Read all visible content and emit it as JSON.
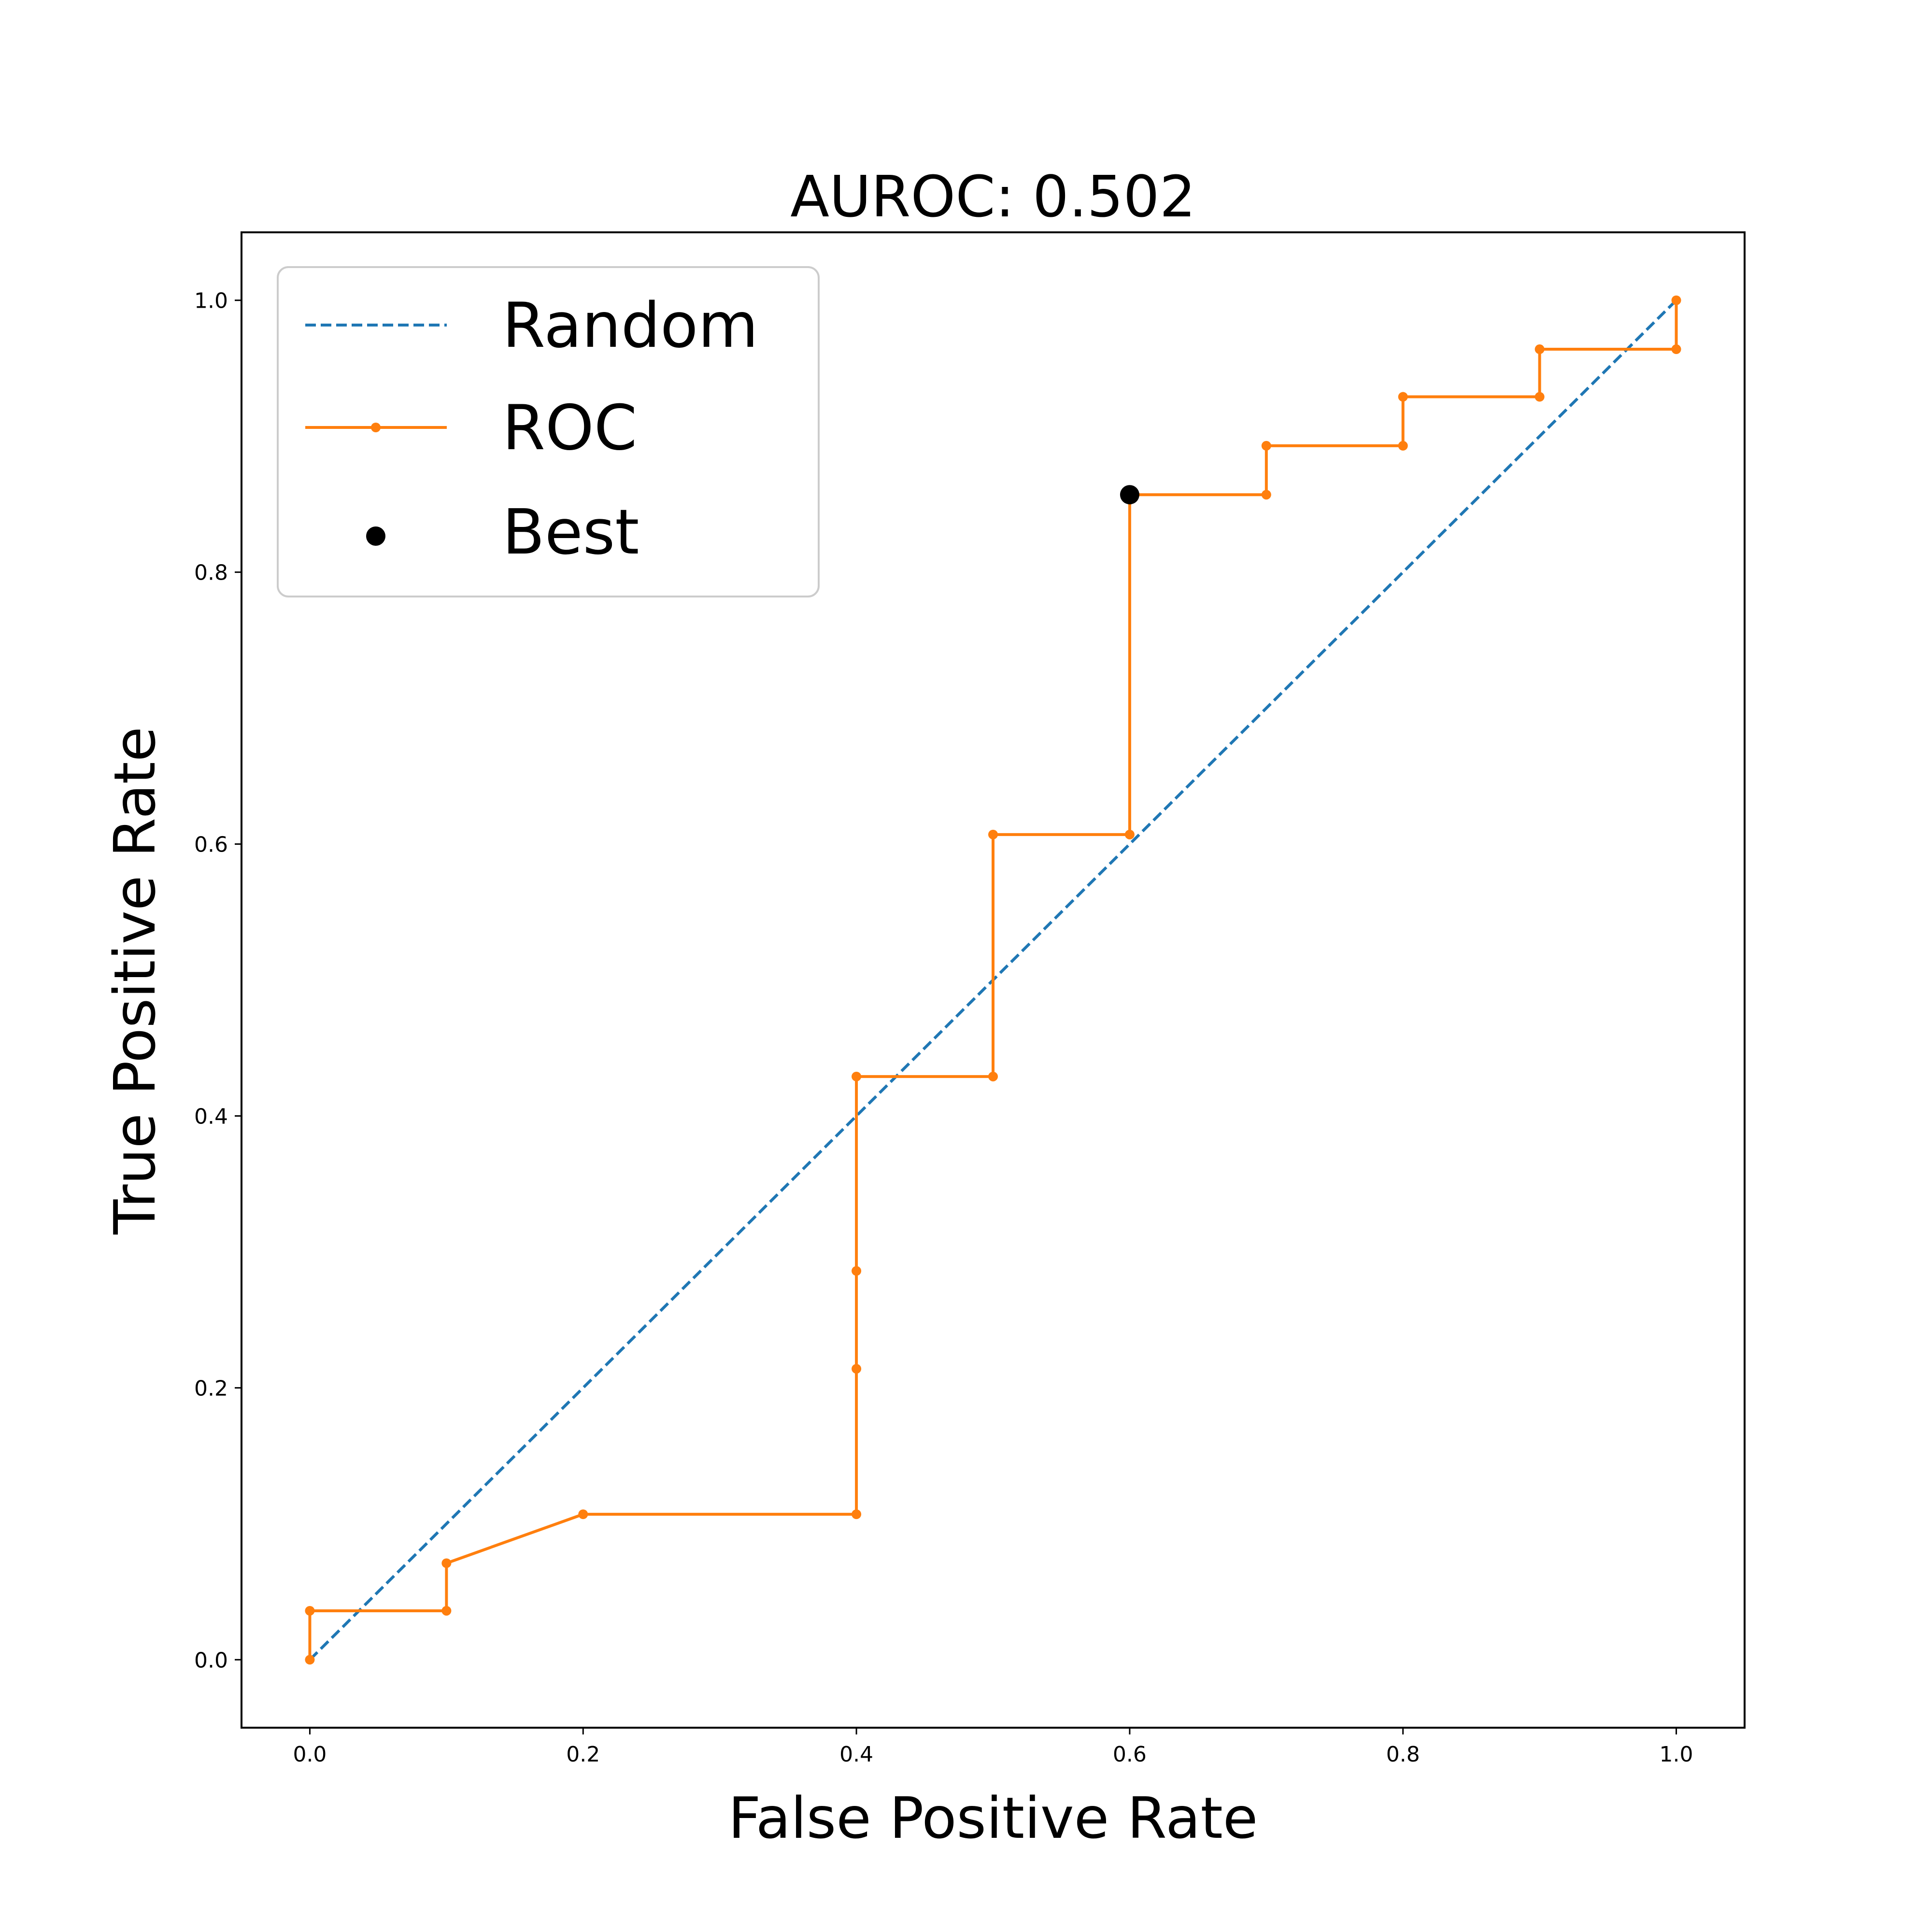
{
  "chart_data": {
    "type": "line",
    "title": "AUROC: 0.502",
    "xlabel": "False Positive Rate",
    "ylabel": "True Positive Rate",
    "xlim": [
      -0.05,
      1.05
    ],
    "ylim": [
      -0.05,
      1.05
    ],
    "xticks": [
      0.0,
      0.2,
      0.4,
      0.6,
      0.8,
      1.0
    ],
    "yticks": [
      0.0,
      0.2,
      0.4,
      0.6,
      0.8,
      1.0
    ],
    "xtick_labels": [
      "0.0",
      "0.2",
      "0.4",
      "0.6",
      "0.8",
      "1.0"
    ],
    "ytick_labels": [
      "0.0",
      "0.2",
      "0.4",
      "0.6",
      "0.8",
      "1.0"
    ],
    "grid": false,
    "legend_position": "top-left",
    "series": [
      {
        "name": "Random",
        "style": "dashed",
        "color": "#1f77b4",
        "x": [
          0.0,
          1.0
        ],
        "y": [
          0.0,
          1.0
        ]
      },
      {
        "name": "ROC",
        "style": "solid-with-markers",
        "color": "#ff7f0e",
        "x": [
          0.0,
          0.0,
          0.1,
          0.1,
          0.2,
          0.4,
          0.4,
          0.4,
          0.4,
          0.5,
          0.5,
          0.6,
          0.6,
          0.7,
          0.7,
          0.8,
          0.8,
          0.9,
          0.9,
          1.0,
          1.0
        ],
        "y": [
          0.0,
          0.036,
          0.036,
          0.071,
          0.107,
          0.107,
          0.214,
          0.286,
          0.429,
          0.429,
          0.607,
          0.607,
          0.857,
          0.857,
          0.893,
          0.893,
          0.929,
          0.929,
          0.964,
          0.964,
          1.0
        ]
      },
      {
        "name": "Best",
        "style": "scatter",
        "color": "#000000",
        "x": [
          0.6
        ],
        "y": [
          0.857
        ]
      }
    ]
  }
}
